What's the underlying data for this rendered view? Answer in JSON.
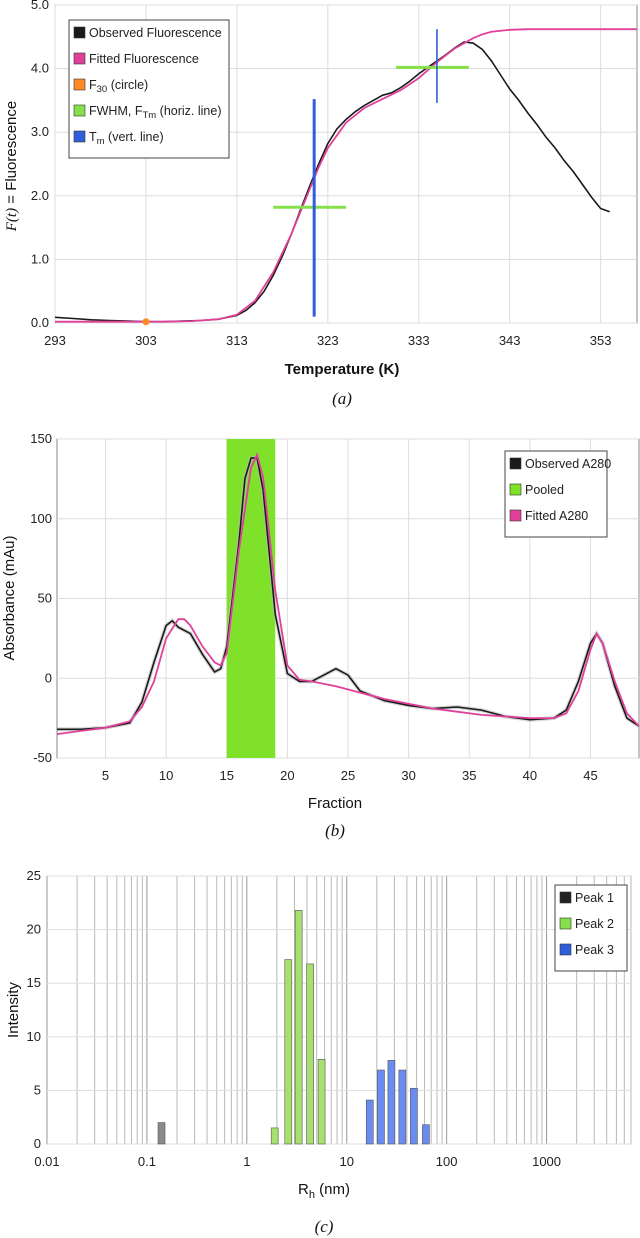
{
  "chart_data": [
    {
      "type": "line",
      "panel": "a",
      "caption": "(a)",
      "xlabel": "Temperature (K)",
      "ylabel_italic": "F(t)",
      "ylabel_rest": " = Fluorescence",
      "xlim": [
        293,
        357
      ],
      "ylim": [
        0,
        5.0
      ],
      "x_ticks": [
        "293",
        "303",
        "313",
        "323",
        "333",
        "343",
        "353"
      ],
      "x_tick_values": [
        293,
        303,
        313,
        323,
        333,
        343,
        353
      ],
      "y_ticks": [
        "0.0",
        "1.0",
        "2.0",
        "3.0",
        "4.0",
        "5.0"
      ],
      "y_tick_values": [
        0,
        1,
        2,
        3,
        4,
        5
      ],
      "grid": true,
      "legend_position": "top-left",
      "legend": [
        {
          "label": "Observed Fluorescence",
          "color": "#1a1a1a"
        },
        {
          "label": "Fitted Fluorescence",
          "color": "#e0409a"
        },
        {
          "label": "F30 (circle)",
          "main": "F",
          "sub": "30",
          "rest": " (circle)",
          "color": "#ff8a26"
        },
        {
          "label": "FWHM, FTm (horiz. line)",
          "main": "FWHM, F",
          "sub": "Tm",
          "rest": " (horiz. line)",
          "color": "#86e04a"
        },
        {
          "label": "Tm (vert. line)",
          "main": "T",
          "sub": "m",
          "rest": " (vert. line)",
          "color": "#2f5fd8"
        }
      ],
      "series": [
        {
          "name": "Observed Fluorescence",
          "color": "#1a1a1a",
          "x": [
            293,
            295,
            297,
            299,
            301,
            303,
            305,
            307,
            309,
            311,
            313,
            314,
            315,
            316,
            317,
            318,
            319,
            320,
            321,
            322,
            323,
            324,
            325,
            326,
            327,
            328,
            329,
            330,
            331,
            332,
            333,
            334,
            335,
            336,
            337,
            338,
            339,
            340,
            341,
            342,
            343,
            344,
            345,
            346,
            347,
            348,
            349,
            350,
            351,
            352,
            353,
            354
          ],
          "y": [
            0.09,
            0.07,
            0.05,
            0.04,
            0.03,
            0.02,
            0.02,
            0.03,
            0.04,
            0.06,
            0.12,
            0.2,
            0.32,
            0.5,
            0.75,
            1.05,
            1.4,
            1.78,
            2.15,
            2.5,
            2.82,
            3.05,
            3.2,
            3.32,
            3.42,
            3.5,
            3.58,
            3.62,
            3.7,
            3.8,
            3.92,
            4.02,
            4.12,
            4.22,
            4.33,
            4.42,
            4.4,
            4.3,
            4.12,
            3.9,
            3.68,
            3.5,
            3.3,
            3.12,
            2.92,
            2.75,
            2.55,
            2.38,
            2.18,
            1.98,
            1.8,
            1.75
          ]
        },
        {
          "name": "Fitted Fluorescence",
          "color": "#e0409a",
          "x": [
            293,
            296,
            299,
            302,
            305,
            308,
            311,
            313,
            315,
            317,
            319,
            320,
            321,
            322,
            323,
            325,
            327,
            329,
            331,
            333,
            335,
            337,
            339,
            340,
            341,
            343,
            345,
            348,
            351,
            354,
            357
          ],
          "y": [
            0.02,
            0.02,
            0.02,
            0.02,
            0.02,
            0.03,
            0.06,
            0.13,
            0.35,
            0.8,
            1.4,
            1.75,
            2.1,
            2.45,
            2.75,
            3.15,
            3.38,
            3.52,
            3.66,
            3.85,
            4.1,
            4.32,
            4.48,
            4.54,
            4.58,
            4.61,
            4.62,
            4.62,
            4.62,
            4.62,
            4.62
          ]
        }
      ],
      "markers": {
        "f30_point": {
          "x": 303,
          "y": 0.02
        },
        "fwhm_lines": [
          {
            "x_from": 317,
            "x_to": 325,
            "y": 1.82
          },
          {
            "x_from": 330.5,
            "x_to": 338.5,
            "y": 4.02
          }
        ],
        "tm_lines": [
          {
            "x": 321.5,
            "y_from": 0.1,
            "y_to": 3.52
          },
          {
            "x": 335,
            "y_from": 3.46,
            "y_to": 4.62
          }
        ]
      }
    },
    {
      "type": "line",
      "panel": "b",
      "caption": "(b)",
      "xlabel": "Fraction",
      "ylabel": "Absorbance (mAu)",
      "xlim": [
        1,
        49
      ],
      "ylim": [
        -50,
        150
      ],
      "x_ticks": [
        "5",
        "10",
        "15",
        "20",
        "25",
        "30",
        "35",
        "40",
        "45"
      ],
      "x_tick_values": [
        5,
        10,
        15,
        20,
        25,
        30,
        35,
        40,
        45
      ],
      "y_ticks": [
        "-50",
        "0",
        "50",
        "100",
        "150"
      ],
      "y_tick_values": [
        -50,
        0,
        50,
        100,
        150
      ],
      "grid": true,
      "legend_position": "top-right",
      "legend": [
        {
          "label": "Observed A280",
          "color": "#1a1a1a"
        },
        {
          "label": "Pooled",
          "color": "#7fe12a"
        },
        {
          "label": "Fitted A280",
          "color": "#e0409a"
        }
      ],
      "pooled_region": {
        "x_from": 15,
        "x_to": 19,
        "color": "#7fe12a"
      },
      "series": [
        {
          "name": "Observed A280",
          "color": "#1a1a1a",
          "x": [
            1,
            3,
            5,
            7,
            8,
            9,
            10,
            10.5,
            11,
            12,
            13,
            14,
            14.5,
            15,
            16,
            16.5,
            17,
            17.5,
            18,
            19,
            20,
            21,
            22,
            23,
            24,
            25,
            26,
            28,
            30,
            32,
            34,
            36,
            38,
            40,
            42,
            43,
            44,
            45,
            45.5,
            46,
            47,
            48,
            49
          ],
          "y": [
            -32,
            -32,
            -31,
            -28,
            -15,
            10,
            33,
            36,
            32,
            28,
            15,
            4,
            6,
            20,
            85,
            125,
            138,
            138,
            118,
            40,
            3,
            -2,
            -2,
            2,
            6,
            2,
            -8,
            -14,
            -17,
            -19,
            -18,
            -20,
            -24,
            -26,
            -25,
            -20,
            -2,
            22,
            28,
            22,
            -5,
            -25,
            -30
          ]
        },
        {
          "name": "Fitted A280",
          "color": "#e0409a",
          "x": [
            1,
            3,
            5,
            7,
            8,
            9,
            10,
            11,
            11.5,
            12,
            13,
            14,
            14.5,
            15,
            16,
            17,
            17.5,
            18,
            19,
            20,
            21,
            22,
            24,
            26,
            28,
            30,
            32,
            34,
            36,
            38,
            40,
            42,
            43,
            44,
            45,
            45.5,
            46,
            47,
            48,
            49
          ],
          "y": [
            -35,
            -33,
            -31,
            -27,
            -18,
            -2,
            25,
            37,
            37,
            33,
            20,
            10,
            8,
            16,
            80,
            132,
            140,
            126,
            55,
            8,
            -1,
            -2,
            -5,
            -9,
            -13,
            -16,
            -19,
            -21,
            -23,
            -24,
            -25,
            -25,
            -22,
            -8,
            18,
            28,
            22,
            -2,
            -22,
            -30
          ]
        }
      ]
    },
    {
      "type": "bar",
      "panel": "c",
      "caption": "(c)",
      "xlabel_main": "R",
      "xlabel_sub": "h",
      "xlabel_rest": " (nm)",
      "ylabel": "Intensity",
      "x_scale": "log",
      "xlim": [
        0.01,
        7000
      ],
      "ylim": [
        0,
        25
      ],
      "x_ticks": [
        "0.01",
        "0.1",
        "1",
        "10",
        "100",
        "1000"
      ],
      "x_tick_values": [
        0.01,
        0.1,
        1,
        10,
        100,
        1000
      ],
      "y_ticks": [
        "0",
        "5",
        "10",
        "15",
        "20",
        "25"
      ],
      "y_tick_values": [
        0,
        5,
        10,
        15,
        20,
        25
      ],
      "grid": true,
      "legend_position": "top-right",
      "legend": [
        {
          "label": "Peak 1",
          "color": "#222222"
        },
        {
          "label": "Peak 2",
          "color": "#86e04a"
        },
        {
          "label": "Peak 3",
          "color": "#2f5fd8"
        }
      ],
      "series": [
        {
          "name": "Peak 1",
          "color": "#8a8a8a",
          "x": [
            0.14
          ],
          "values": [
            2
          ]
        },
        {
          "name": "Peak 2",
          "color": "#a8e070",
          "x": [
            1.9,
            2.6,
            3.3,
            4.3,
            5.6
          ],
          "values": [
            1.5,
            17.2,
            21.8,
            16.8,
            7.9
          ]
        },
        {
          "name": "Peak 3",
          "color": "#6a8cf0",
          "x": [
            17,
            22,
            28,
            36,
            47,
            62
          ],
          "values": [
            4.1,
            6.9,
            7.8,
            6.9,
            5.2,
            1.8
          ]
        }
      ]
    }
  ]
}
